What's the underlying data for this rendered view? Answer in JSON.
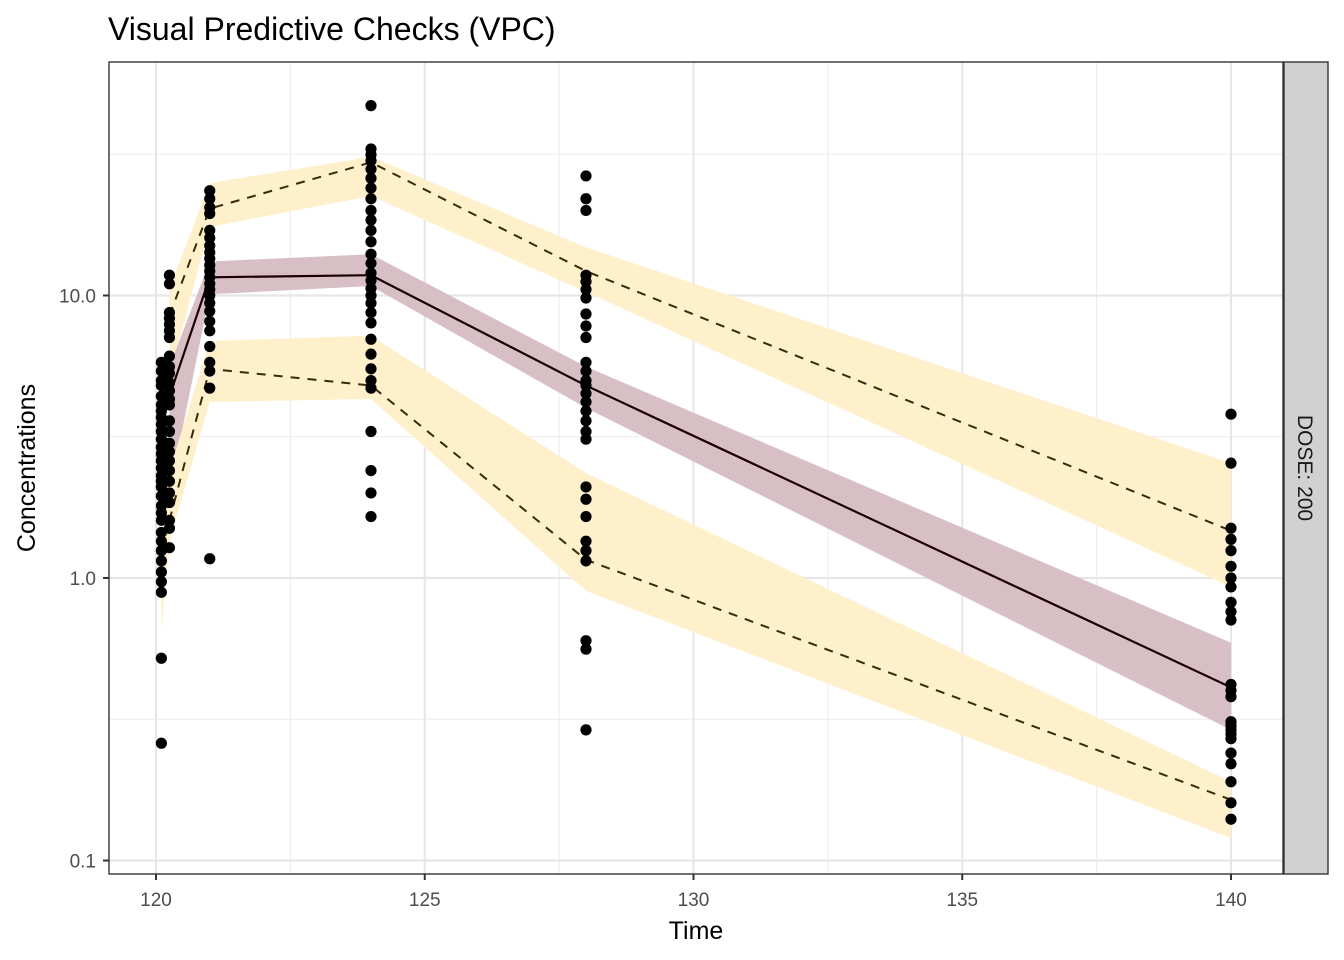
{
  "chart_data": {
    "type": "scatter",
    "title": "Visual Predictive Checks (VPC)",
    "xlabel": "Time",
    "ylabel": "Concentrations",
    "facet_label": "DOSE: 200",
    "xlim": [
      119.1,
      141.0
    ],
    "ylim": [
      0.088,
      58
    ],
    "y_scale": "log10",
    "x_ticks": [
      120,
      125,
      130,
      135,
      140
    ],
    "x_tick_labels": [
      "120",
      "125",
      "130",
      "135",
      "140"
    ],
    "y_ticks": [
      0.1,
      1.0,
      10.0
    ],
    "y_tick_labels": [
      "0.1",
      "1.0",
      "10.0"
    ],
    "grid": true,
    "colors": {
      "pi_band": "#fff0cc",
      "median_band": "#d8bfc6",
      "median_line": "#1a0005",
      "pi_line": "#3a2a08",
      "points": "#000000",
      "strip_fill": "#d1d1d1"
    },
    "bands": [
      {
        "name": "upper-pi-band",
        "x": [
          120.25,
          121,
          124,
          128,
          140
        ],
        "lo": [
          5.2,
          17.5,
          22.5,
          10.3,
          0.93
        ],
        "hi": [
          10.6,
          25.0,
          31.0,
          14.8,
          2.55
        ]
      },
      {
        "name": "median-band",
        "x": [
          120.25,
          121,
          124,
          128,
          140
        ],
        "lo": [
          2.0,
          10.1,
          10.8,
          4.0,
          0.29
        ],
        "hi": [
          5.6,
          13.2,
          14.0,
          5.6,
          0.59
        ]
      },
      {
        "name": "lower-pi-band",
        "x": [
          120.1,
          120.25,
          121,
          124,
          128,
          140
        ],
        "lo": [
          0.65,
          1.35,
          4.2,
          4.3,
          0.9,
          0.12
        ],
        "hi": [
          1.3,
          2.4,
          6.9,
          7.2,
          2.35,
          0.19
        ]
      }
    ],
    "series": [
      {
        "name": "upper-pi-line",
        "style": "dashed",
        "x": [
          120.25,
          121,
          124,
          128,
          140
        ],
        "y": [
          8.5,
          20.3,
          29.6,
          12.2,
          1.47
        ]
      },
      {
        "name": "median-line",
        "style": "solid",
        "x": [
          120.25,
          121,
          124,
          128,
          140
        ],
        "y": [
          4.4,
          11.6,
          11.8,
          4.8,
          0.41
        ]
      },
      {
        "name": "lower-pi-line",
        "style": "dashed",
        "x": [
          120.25,
          121,
          124,
          128,
          140
        ],
        "y": [
          1.6,
          5.5,
          4.8,
          1.16,
          0.164
        ]
      }
    ],
    "points": [
      {
        "x": 120.1,
        "y": [
          5.8,
          5.4,
          5.0,
          4.8,
          4.4,
          4.1,
          3.9,
          3.7,
          3.5,
          3.3,
          3.1,
          2.9,
          2.75,
          2.6,
          2.45,
          2.3,
          2.2,
          2.1,
          1.95,
          1.8,
          1.7,
          1.6,
          1.45,
          1.35,
          1.25,
          1.15,
          1.05,
          0.97,
          0.89,
          0.52,
          0.26
        ]
      },
      {
        "x": 120.25,
        "y": [
          11.8,
          11.0,
          8.7,
          8.3,
          7.9,
          7.5,
          7.1,
          6.1,
          5.6,
          5.3,
          4.9,
          4.6,
          4.3,
          4.1,
          3.6,
          3.3,
          3.0,
          2.8,
          2.6,
          2.4,
          2.2,
          2.0,
          1.85,
          1.6,
          1.5,
          1.28
        ]
      },
      {
        "x": 121,
        "y": [
          23.5,
          22.0,
          20.5,
          19.5,
          17.0,
          16.0,
          15.0,
          14.2,
          13.5,
          12.8,
          12.2,
          11.6,
          11.0,
          10.5,
          10.0,
          9.4,
          8.8,
          8.1,
          7.5,
          6.6,
          5.8,
          5.4,
          4.7,
          1.17
        ]
      },
      {
        "x": 124,
        "y": [
          47.0,
          33.0,
          31.5,
          30.0,
          28.0,
          26.0,
          24.0,
          22.0,
          20.0,
          18.5,
          17.0,
          15.5,
          14.0,
          13.0,
          12.0,
          11.3,
          10.6,
          10.0,
          9.4,
          8.7,
          8.0,
          7.0,
          6.2,
          5.5,
          5.0,
          4.7,
          3.3,
          2.4,
          2.0,
          1.65
        ]
      },
      {
        "x": 128,
        "y": [
          26.5,
          22.0,
          20.0,
          11.8,
          11.2,
          10.5,
          9.8,
          8.6,
          7.8,
          7.1,
          5.8,
          5.4,
          5.0,
          4.8,
          4.5,
          4.2,
          3.9,
          3.6,
          3.3,
          3.1,
          2.1,
          1.9,
          1.65,
          1.35,
          1.25,
          1.15,
          0.6,
          0.56,
          0.29
        ]
      },
      {
        "x": 140,
        "y": [
          3.8,
          2.55,
          1.5,
          1.37,
          1.25,
          1.1,
          1.0,
          0.93,
          0.82,
          0.76,
          0.71,
          0.42,
          0.4,
          0.38,
          0.31,
          0.3,
          0.29,
          0.28,
          0.27,
          0.24,
          0.22,
          0.19,
          0.16,
          0.14
        ]
      }
    ]
  }
}
